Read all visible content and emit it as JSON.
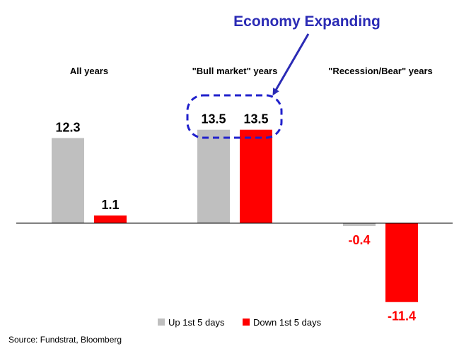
{
  "chart_data": {
    "type": "bar",
    "categories": [
      "All years",
      "\"Bull market\" years",
      "\"Recession/Bear\" years"
    ],
    "series": [
      {
        "name": "Up 1st 5 days",
        "values": [
          12.3,
          13.5,
          -0.4
        ],
        "color": "#bfbfbf"
      },
      {
        "name": "Down 1st 5 days",
        "values": [
          1.1,
          13.5,
          -11.4
        ],
        "color": "#ff0000"
      }
    ],
    "annotation": "Economy Expanding",
    "annotation_color": "#2b2bb5",
    "negative_label_color": "#ff0000",
    "grid": false,
    "legend_position": "bottom",
    "ylim": [
      -12.5,
      14.5
    ]
  },
  "source": "Source: Fundstrat, Bloomberg"
}
